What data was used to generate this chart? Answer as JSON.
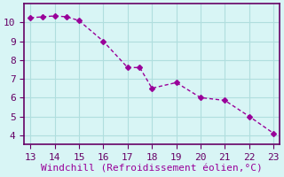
{
  "x": [
    13,
    13.5,
    14,
    14.5,
    15,
    16,
    17,
    17.5,
    18,
    19,
    20,
    21,
    22,
    23
  ],
  "y": [
    10.25,
    10.3,
    10.35,
    10.3,
    10.1,
    9.0,
    7.6,
    7.6,
    6.5,
    6.8,
    6.0,
    5.85,
    5.0,
    4.1
  ],
  "line_color": "#990099",
  "marker": "D",
  "marker_size": 3,
  "background_color": "#d8f5f5",
  "grid_color": "#b0dede",
  "axis_color": "#660066",
  "xlabel": "Windchill (Refroidissement éolien,°C)",
  "xlabel_color": "#990099",
  "tick_color": "#660066",
  "xlim": [
    12.75,
    23.25
  ],
  "ylim": [
    3.5,
    11.0
  ],
  "xticks": [
    13,
    14,
    15,
    16,
    17,
    18,
    19,
    20,
    21,
    22,
    23
  ],
  "yticks": [
    4,
    5,
    6,
    7,
    8,
    9,
    10
  ],
  "fontsize": 8
}
